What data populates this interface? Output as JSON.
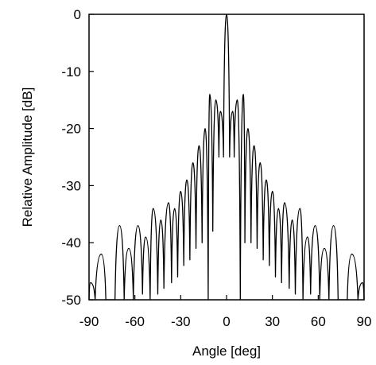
{
  "chart_data": {
    "type": "line",
    "title": "",
    "xlabel": "Angle [deg]",
    "ylabel": "Relative Amplitude [dB]",
    "xlim": [
      -90,
      90
    ],
    "ylim": [
      -50,
      0
    ],
    "xticks": [
      -90,
      -60,
      -30,
      0,
      30,
      60,
      90
    ],
    "xtick_labels": [
      "-90",
      "-60",
      "-30",
      "0",
      "30",
      "60",
      "90"
    ],
    "yticks": [
      0,
      -10,
      -20,
      -30,
      -40,
      -50
    ],
    "ytick_labels": [
      "0",
      "-10",
      "-20",
      "-30",
      "-40",
      "-50"
    ],
    "grid": false,
    "line_color": "#000000",
    "series": [
      {
        "peaks": [
          [
            -89,
            -47
          ],
          [
            -82,
            -42
          ],
          [
            -76,
            -50
          ],
          [
            -70,
            -37
          ],
          [
            -64,
            -41
          ],
          [
            -58,
            -37
          ],
          [
            -53,
            -39
          ],
          [
            -48,
            -34
          ],
          [
            -43,
            -36
          ],
          [
            -38,
            -33
          ],
          [
            -34,
            -34
          ],
          [
            -30,
            -31
          ],
          [
            -26,
            -29
          ],
          [
            -22,
            -26
          ],
          [
            -18,
            -23
          ],
          [
            -14,
            -20
          ],
          [
            -11,
            -14
          ],
          [
            -7,
            -15
          ],
          [
            -4,
            -17
          ],
          [
            0,
            0
          ],
          [
            4,
            -17
          ],
          [
            7,
            -15
          ],
          [
            11,
            -14
          ],
          [
            14,
            -20
          ],
          [
            18,
            -23
          ],
          [
            22,
            -26
          ],
          [
            26,
            -29
          ],
          [
            30,
            -31
          ],
          [
            34,
            -34
          ],
          [
            38,
            -33
          ],
          [
            43,
            -36
          ],
          [
            48,
            -34
          ],
          [
            53,
            -39
          ],
          [
            58,
            -37
          ],
          [
            64,
            -41
          ],
          [
            70,
            -37
          ],
          [
            76,
            -50
          ],
          [
            82,
            -42
          ],
          [
            89,
            -47
          ]
        ],
        "nulls": [
          [
            -90,
            -50
          ],
          [
            -86,
            -50
          ],
          [
            -79,
            -50
          ],
          [
            -73,
            -50
          ],
          [
            -67,
            -50
          ],
          [
            -61,
            -50
          ],
          [
            -55,
            -49
          ],
          [
            -50,
            -50
          ],
          [
            -45,
            -49
          ],
          [
            -41,
            -48
          ],
          [
            -36,
            -47
          ],
          [
            -32,
            -46
          ],
          [
            -28,
            -44
          ],
          [
            -24,
            -43
          ],
          [
            -20,
            -41
          ],
          [
            -16,
            -40
          ],
          [
            -12,
            -50
          ],
          [
            -9,
            -38
          ],
          [
            -5,
            -25
          ],
          [
            -2,
            -25
          ],
          [
            2,
            -25
          ],
          [
            5,
            -25
          ],
          [
            9,
            -50
          ],
          [
            12,
            -40
          ],
          [
            16,
            -40
          ],
          [
            20,
            -41
          ],
          [
            24,
            -43
          ],
          [
            28,
            -44
          ],
          [
            32,
            -46
          ],
          [
            36,
            -47
          ],
          [
            41,
            -48
          ],
          [
            45,
            -49
          ],
          [
            50,
            -50
          ],
          [
            55,
            -49
          ],
          [
            61,
            -50
          ],
          [
            67,
            -50
          ],
          [
            73,
            -50
          ],
          [
            79,
            -50
          ],
          [
            86,
            -50
          ],
          [
            90,
            -50
          ]
        ]
      }
    ]
  }
}
